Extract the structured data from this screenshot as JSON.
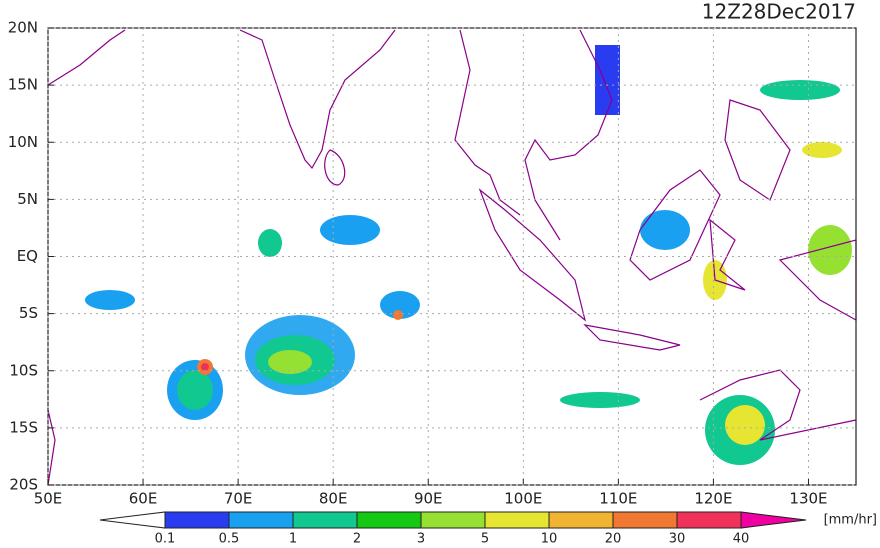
{
  "map": {
    "title": "12Z28Dec2017",
    "lonlim": [
      50,
      135
    ],
    "latlim": [
      -20,
      20
    ],
    "lon_ticks": [
      {
        "value": 50,
        "label": "50E"
      },
      {
        "value": 60,
        "label": "60E"
      },
      {
        "value": 70,
        "label": "70E"
      },
      {
        "value": 80,
        "label": "80E"
      },
      {
        "value": 90,
        "label": "90E"
      },
      {
        "value": 100,
        "label": "100E"
      },
      {
        "value": 110,
        "label": "110E"
      },
      {
        "value": 120,
        "label": "120E"
      },
      {
        "value": 130,
        "label": "130E"
      }
    ],
    "lat_ticks": [
      {
        "value": 20,
        "label": "20N"
      },
      {
        "value": 15,
        "label": "15N"
      },
      {
        "value": 10,
        "label": "10N"
      },
      {
        "value": 5,
        "label": "5N"
      },
      {
        "value": 0,
        "label": "EQ"
      },
      {
        "value": -5,
        "label": "5S"
      },
      {
        "value": -10,
        "label": "10S"
      },
      {
        "value": -15,
        "label": "15S"
      },
      {
        "value": -20,
        "label": "20S"
      }
    ],
    "colorbar": {
      "levels": [
        0.1,
        0.5,
        1,
        2,
        3,
        5,
        10,
        20,
        30,
        40
      ],
      "colors": [
        "#ffffff",
        "#2a3cf0",
        "#1aa0f0",
        "#10c890",
        "#14c814",
        "#96e032",
        "#e6e632",
        "#f0b432",
        "#f07832",
        "#f0325a",
        "#f000a0"
      ],
      "unit": "[mm/hr]"
    }
  }
}
